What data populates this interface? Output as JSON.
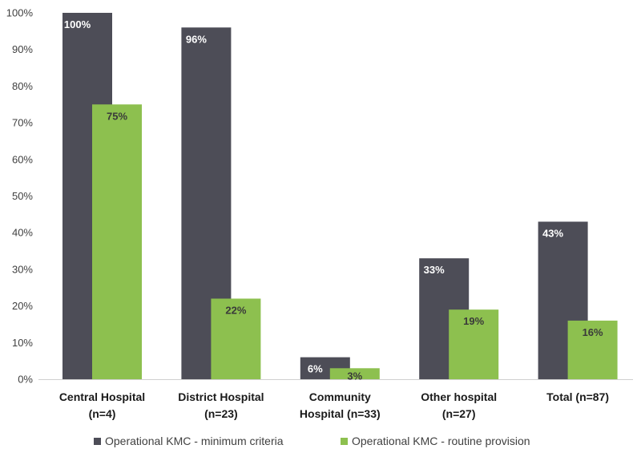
{
  "chart_data": {
    "type": "bar",
    "categories": [
      [
        "Central Hospital",
        "(n=4)"
      ],
      [
        "District Hospital",
        "(n=23)"
      ],
      [
        "Community",
        "Hospital (n=33)"
      ],
      [
        "Other hospital",
        "(n=27)"
      ],
      [
        "Total (n=87)"
      ]
    ],
    "series": [
      {
        "name": "Operational KMC - minimum criteria",
        "color": "#4d4d57",
        "label_color": "#ffffff",
        "values": [
          100,
          96,
          6,
          33,
          43
        ],
        "labels": [
          "100%",
          "96%",
          "6%",
          "33%",
          "43%"
        ]
      },
      {
        "name": "Operational KMC - routine provision",
        "color": "#8dc04f",
        "label_color": "#3a3a3a",
        "values": [
          75,
          22,
          3,
          19,
          16
        ],
        "labels": [
          "75%",
          "22%",
          "3%",
          "19%",
          "16%"
        ]
      }
    ],
    "ylim": [
      0,
      100
    ],
    "yticks": [
      0,
      10,
      20,
      30,
      40,
      50,
      60,
      70,
      80,
      90,
      100
    ],
    "ytick_labels": [
      "0%",
      "10%",
      "20%",
      "30%",
      "40%",
      "50%",
      "60%",
      "70%",
      "80%",
      "90%",
      "100%"
    ],
    "title": "",
    "xlabel": "",
    "ylabel": "",
    "grid": false,
    "legend_position": "bottom"
  }
}
